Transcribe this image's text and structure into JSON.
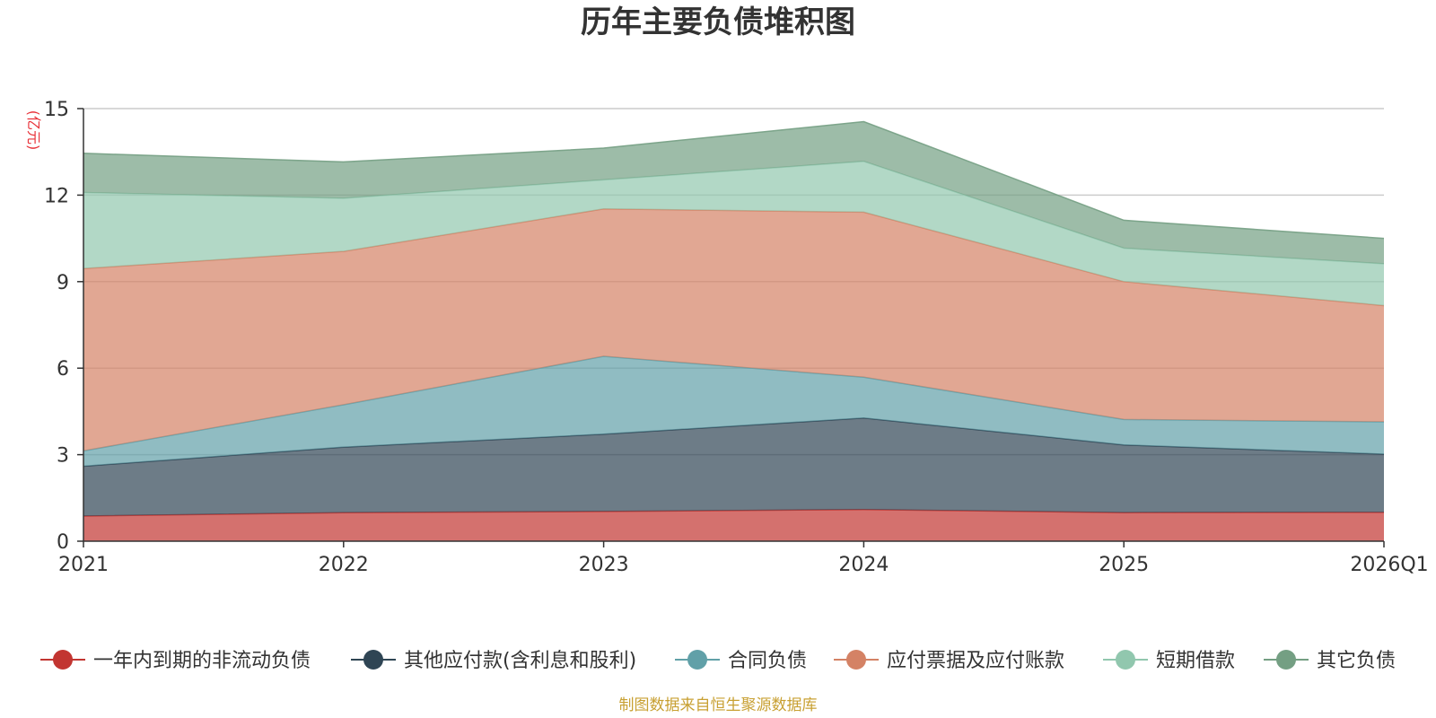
{
  "chart_data": {
    "type": "area",
    "stacked": true,
    "title": "历年主要负债堆积图",
    "unit_label": "(亿元)",
    "x": [
      "2021",
      "2022",
      "2023",
      "2024",
      "2025",
      "2026Q1"
    ],
    "ylim": [
      0,
      15
    ],
    "yticks": [
      "0",
      "3",
      "6",
      "9",
      "12",
      "15"
    ],
    "grid": true,
    "legend_position": "bottom",
    "series": [
      {
        "name": "一年内到期的非流动负债",
        "color": "#c23531",
        "values": [
          0.87,
          0.99,
          1.03,
          1.1,
          0.99,
          1.0
        ]
      },
      {
        "name": "其他应付款(含利息和股利)",
        "color": "#2f4554",
        "values": [
          1.73,
          2.27,
          2.68,
          3.17,
          2.35,
          2.02
        ]
      },
      {
        "name": "合同负债",
        "color": "#61a0a8",
        "values": [
          0.53,
          1.47,
          2.7,
          1.42,
          0.88,
          1.12
        ]
      },
      {
        "name": "应付票据及应付账款",
        "color": "#d48265",
        "values": [
          6.32,
          5.32,
          5.11,
          5.72,
          4.78,
          4.03
        ]
      },
      {
        "name": "短期借款",
        "color": "#91c7ae",
        "values": [
          2.64,
          1.84,
          1.01,
          1.76,
          1.16,
          1.45
        ]
      },
      {
        "name": "其它负债",
        "color": "#749f83",
        "values": [
          1.36,
          1.26,
          1.1,
          1.38,
          0.97,
          0.88
        ]
      }
    ],
    "source": "制图数据来自恒生聚源数据库"
  },
  "colors": {
    "unit": "#e8333a",
    "source": "#c8a032",
    "grid": "#cccccc",
    "axis": "#333333"
  }
}
